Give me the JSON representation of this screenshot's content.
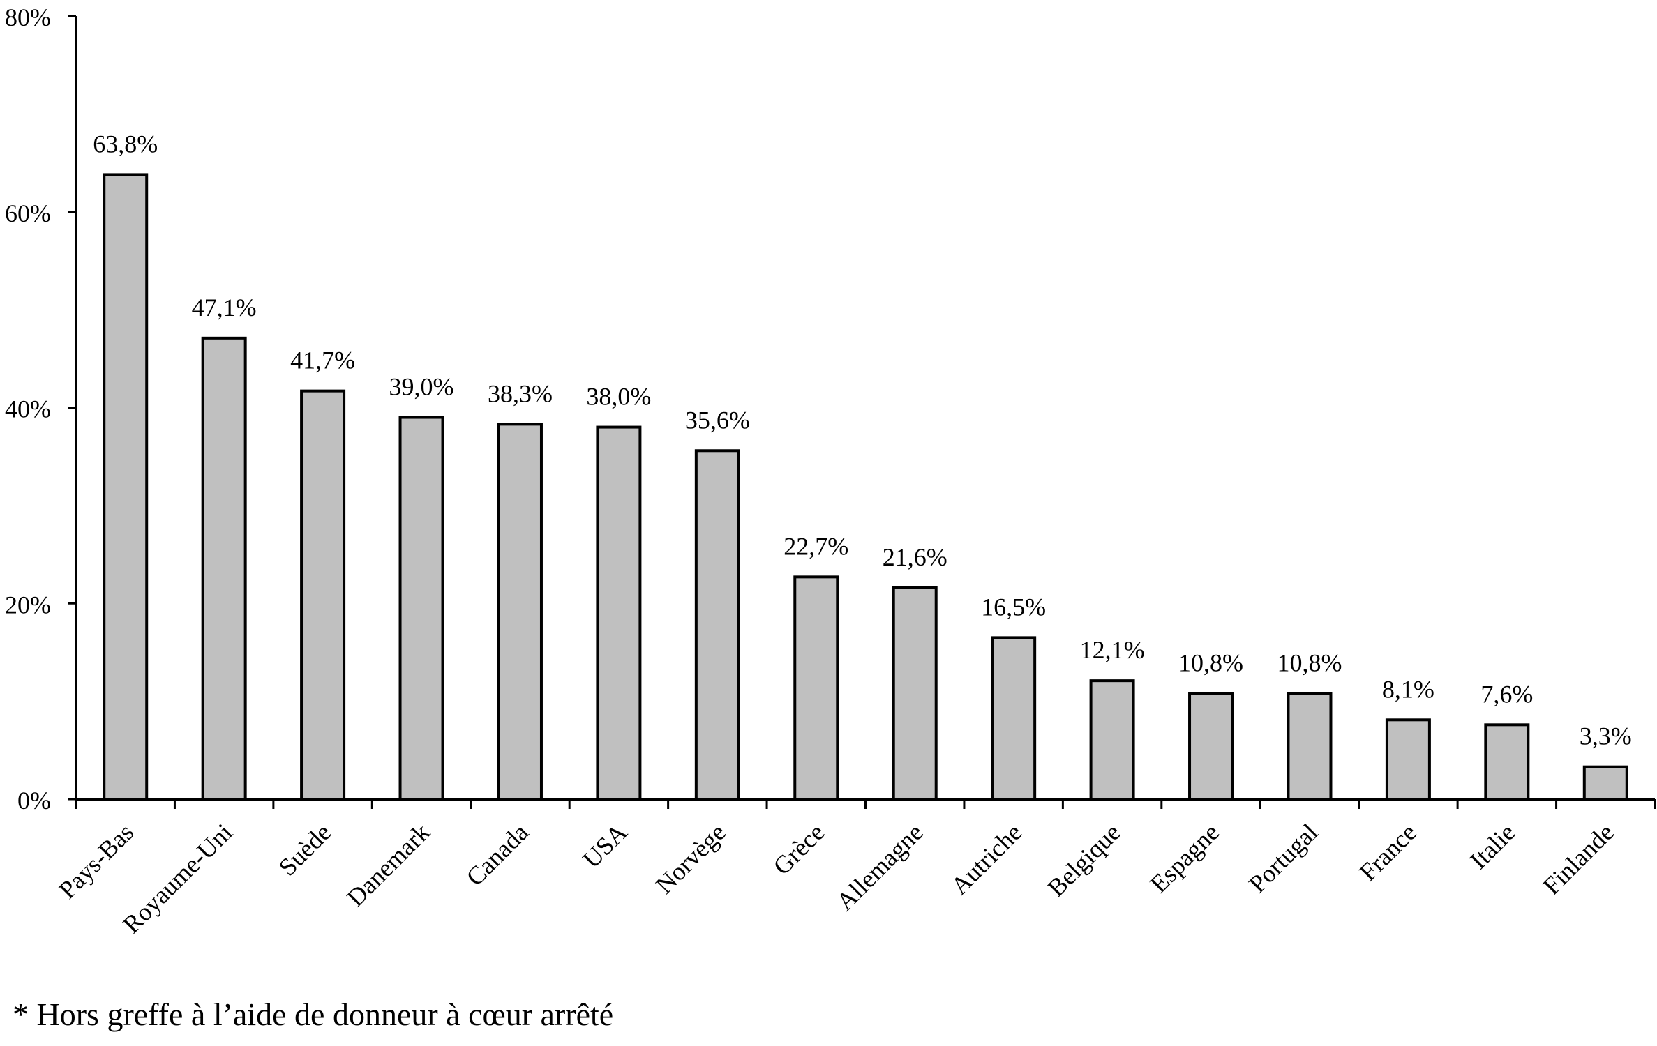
{
  "chart_data": {
    "type": "bar",
    "categories": [
      "Pays-Bas",
      "Royaume-Uni",
      "Suède",
      "Danemark",
      "Canada",
      "USA",
      "Norvège",
      "Grèce",
      "Allemagne",
      "Autriche",
      "Belgique",
      "Espagne",
      "Portugal",
      "France",
      "Italie",
      "Finlande"
    ],
    "values": [
      63.8,
      47.1,
      41.7,
      39.0,
      38.3,
      38.0,
      35.6,
      22.7,
      21.6,
      16.5,
      12.1,
      10.8,
      10.8,
      8.1,
      7.6,
      3.3
    ],
    "value_labels": [
      "63,8%",
      "47,1%",
      "41,7%",
      "39,0%",
      "38,3%",
      "38,0%",
      "35,6%",
      "22,7%",
      "21,6%",
      "16,5%",
      "12,1%",
      "10,8%",
      "10,8%",
      "8,1%",
      "7,6%",
      "3,3%"
    ],
    "ylim": [
      0,
      80
    ],
    "yticks": [
      0,
      20,
      40,
      60,
      80
    ],
    "ytick_labels": [
      "0%",
      "20%",
      "40%",
      "60%",
      "80%"
    ],
    "title": "",
    "xlabel": "",
    "ylabel": "",
    "grid": false,
    "legend": "none",
    "bar_color": "#c0c0c0",
    "bar_edge_color": "#000000",
    "footnote": "* Hors greffe à l’aide de donneur à cœur arrêté"
  }
}
